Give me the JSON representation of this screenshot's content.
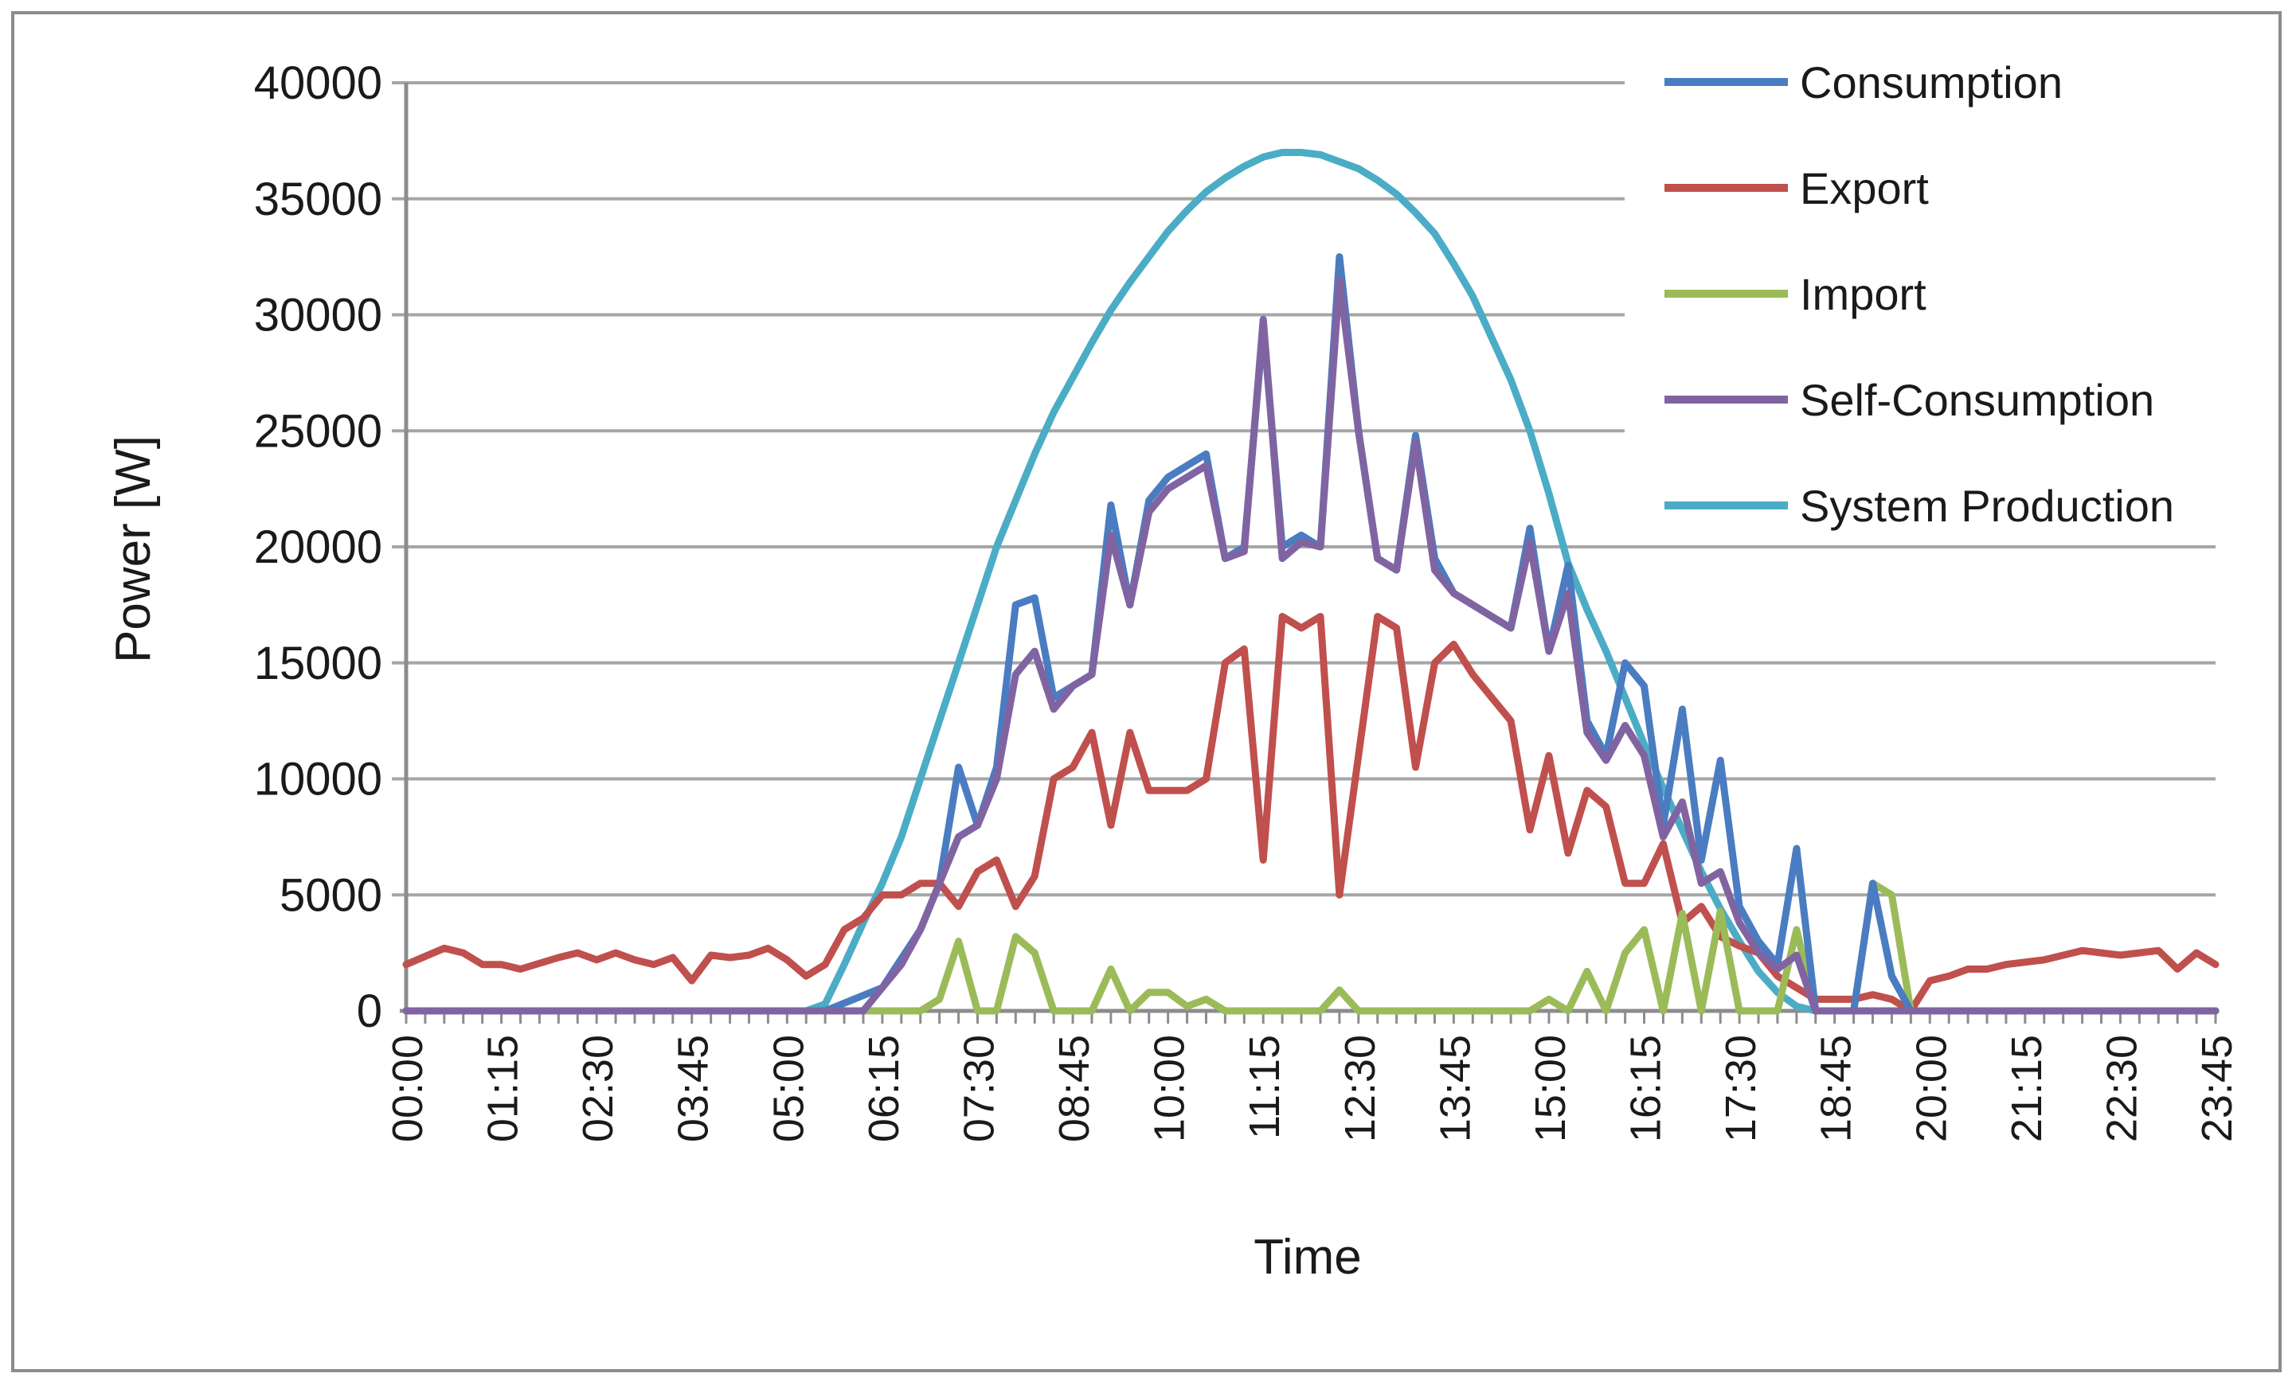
{
  "chart_data": {
    "type": "line",
    "title": "",
    "xlabel": "Time",
    "ylabel": "Power [W]",
    "ylim": [
      0,
      40000
    ],
    "yticks": [
      "0",
      "5000",
      "10000",
      "15000",
      "20000",
      "25000",
      "30000",
      "35000",
      "40000"
    ],
    "xtick_labels": [
      "00:00",
      "01:15",
      "02:30",
      "03:45",
      "05:00",
      "06:15",
      "07:30",
      "08:45",
      "10:00",
      "11:15",
      "12:30",
      "13:45",
      "15:00",
      "16:15",
      "17:30",
      "18:45",
      "20:00",
      "21:15",
      "22:30",
      "23:45"
    ],
    "grid": true,
    "legend_position": "top-right",
    "series": [
      {
        "name": "Consumption",
        "color": "#4a7cc1",
        "points": [
          [
            0,
            0
          ],
          [
            5.5,
            0
          ],
          [
            6.25,
            1000
          ],
          [
            6.75,
            3500
          ],
          [
            7.0,
            5500
          ],
          [
            7.25,
            10500
          ],
          [
            7.5,
            8000
          ],
          [
            7.75,
            10500
          ],
          [
            8.0,
            17500
          ],
          [
            8.25,
            17800
          ],
          [
            8.5,
            13500
          ],
          [
            8.75,
            14000
          ],
          [
            9.0,
            14500
          ],
          [
            9.25,
            21800
          ],
          [
            9.5,
            17500
          ],
          [
            9.75,
            22000
          ],
          [
            10.0,
            23000
          ],
          [
            10.25,
            23500
          ],
          [
            10.5,
            24000
          ],
          [
            10.75,
            19500
          ],
          [
            11.0,
            20000
          ],
          [
            11.25,
            29500
          ],
          [
            11.5,
            20000
          ],
          [
            11.75,
            20500
          ],
          [
            12.0,
            20000
          ],
          [
            12.25,
            32500
          ],
          [
            12.5,
            25000
          ],
          [
            12.75,
            19500
          ],
          [
            13.0,
            19000
          ],
          [
            13.25,
            24800
          ],
          [
            13.5,
            19500
          ],
          [
            13.75,
            18000
          ],
          [
            14.0,
            17500
          ],
          [
            14.25,
            17000
          ],
          [
            14.5,
            16500
          ],
          [
            14.75,
            20800
          ],
          [
            15.0,
            15500
          ],
          [
            15.25,
            19200
          ],
          [
            15.5,
            12500
          ],
          [
            15.75,
            11000
          ],
          [
            16.0,
            15000
          ],
          [
            16.25,
            14000
          ],
          [
            16.5,
            8000
          ],
          [
            16.75,
            13000
          ],
          [
            17.0,
            6500
          ],
          [
            17.25,
            10800
          ],
          [
            17.5,
            4500
          ],
          [
            17.75,
            3000
          ],
          [
            18.0,
            2000
          ],
          [
            18.25,
            7000
          ],
          [
            18.5,
            0
          ],
          [
            19.0,
            0
          ],
          [
            19.25,
            5500
          ],
          [
            19.5,
            1500
          ],
          [
            19.75,
            0
          ],
          [
            23.75,
            0
          ]
        ]
      },
      {
        "name": "Export",
        "color": "#c0504d",
        "points": [
          [
            0,
            2000
          ],
          [
            0.5,
            2700
          ],
          [
            0.75,
            2500
          ],
          [
            1.0,
            2000
          ],
          [
            1.25,
            2000
          ],
          [
            1.5,
            1800
          ],
          [
            2.0,
            2300
          ],
          [
            2.25,
            2500
          ],
          [
            2.5,
            2200
          ],
          [
            2.75,
            2500
          ],
          [
            3.0,
            2200
          ],
          [
            3.25,
            2000
          ],
          [
            3.5,
            2300
          ],
          [
            3.75,
            1300
          ],
          [
            4.0,
            2400
          ],
          [
            4.25,
            2300
          ],
          [
            4.5,
            2400
          ],
          [
            4.75,
            2700
          ],
          [
            5.0,
            2200
          ],
          [
            5.25,
            1500
          ],
          [
            5.5,
            2000
          ],
          [
            5.75,
            3500
          ],
          [
            6.0,
            4000
          ],
          [
            6.25,
            5000
          ],
          [
            6.5,
            5000
          ],
          [
            6.75,
            5500
          ],
          [
            7.0,
            5500
          ],
          [
            7.25,
            4500
          ],
          [
            7.5,
            6000
          ],
          [
            7.75,
            6500
          ],
          [
            8.0,
            4500
          ],
          [
            8.25,
            5800
          ],
          [
            8.5,
            10000
          ],
          [
            8.75,
            10500
          ],
          [
            9.0,
            12000
          ],
          [
            9.25,
            8000
          ],
          [
            9.5,
            12000
          ],
          [
            9.75,
            9500
          ],
          [
            10.0,
            9500
          ],
          [
            10.25,
            9500
          ],
          [
            10.5,
            10000
          ],
          [
            10.75,
            15000
          ],
          [
            11.0,
            15600
          ],
          [
            11.25,
            6500
          ],
          [
            11.5,
            17000
          ],
          [
            11.75,
            16500
          ],
          [
            12.0,
            17000
          ],
          [
            12.25,
            5000
          ],
          [
            12.5,
            11000
          ],
          [
            12.75,
            17000
          ],
          [
            13.0,
            16500
          ],
          [
            13.25,
            10500
          ],
          [
            13.5,
            15000
          ],
          [
            13.75,
            15800
          ],
          [
            14.0,
            14500
          ],
          [
            14.25,
            13500
          ],
          [
            14.5,
            12500
          ],
          [
            14.75,
            7800
          ],
          [
            15.0,
            11000
          ],
          [
            15.25,
            6800
          ],
          [
            15.5,
            9500
          ],
          [
            15.75,
            8800
          ],
          [
            16.0,
            5500
          ],
          [
            16.25,
            5500
          ],
          [
            16.5,
            7200
          ],
          [
            16.75,
            3800
          ],
          [
            17.0,
            4500
          ],
          [
            17.25,
            3200
          ],
          [
            17.5,
            2800
          ],
          [
            17.75,
            2500
          ],
          [
            18.0,
            1500
          ],
          [
            18.5,
            500
          ],
          [
            19.0,
            500
          ],
          [
            19.25,
            700
          ],
          [
            19.5,
            500
          ],
          [
            19.75,
            0
          ],
          [
            20.0,
            1300
          ],
          [
            20.25,
            1500
          ],
          [
            20.5,
            1800
          ],
          [
            20.75,
            1800
          ],
          [
            21.0,
            2000
          ],
          [
            21.5,
            2200
          ],
          [
            22.0,
            2600
          ],
          [
            22.5,
            2400
          ],
          [
            23.0,
            2600
          ],
          [
            23.25,
            1800
          ],
          [
            23.5,
            2500
          ],
          [
            23.75,
            2000
          ]
        ]
      },
      {
        "name": "Import",
        "color": "#9bbb59",
        "points": [
          [
            0,
            0
          ],
          [
            6.75,
            0
          ],
          [
            7.0,
            500
          ],
          [
            7.25,
            3000
          ],
          [
            7.5,
            0
          ],
          [
            7.75,
            0
          ],
          [
            8.0,
            3200
          ],
          [
            8.25,
            2500
          ],
          [
            8.5,
            0
          ],
          [
            9.0,
            0
          ],
          [
            9.25,
            1800
          ],
          [
            9.5,
            0
          ],
          [
            9.75,
            800
          ],
          [
            10.0,
            800
          ],
          [
            10.25,
            200
          ],
          [
            10.5,
            500
          ],
          [
            10.75,
            0
          ],
          [
            12.0,
            0
          ],
          [
            12.25,
            900
          ],
          [
            12.5,
            0
          ],
          [
            14.75,
            0
          ],
          [
            15.0,
            500
          ],
          [
            15.25,
            0
          ],
          [
            15.5,
            1700
          ],
          [
            15.75,
            0
          ],
          [
            16.0,
            2500
          ],
          [
            16.25,
            3500
          ],
          [
            16.5,
            0
          ],
          [
            16.75,
            4200
          ],
          [
            17.0,
            0
          ],
          [
            17.25,
            4300
          ],
          [
            17.5,
            0
          ],
          [
            18.0,
            0
          ],
          [
            18.25,
            3500
          ],
          [
            18.5,
            0
          ],
          [
            19.0,
            0
          ],
          [
            19.25,
            5500
          ],
          [
            19.5,
            5000
          ],
          [
            19.75,
            0
          ],
          [
            23.75,
            0
          ]
        ]
      },
      {
        "name": "Self-Consumption",
        "color": "#8064a2",
        "points": [
          [
            0,
            0
          ],
          [
            5.75,
            0
          ],
          [
            6.0,
            0
          ],
          [
            6.25,
            1000
          ],
          [
            6.5,
            2000
          ],
          [
            6.75,
            3500
          ],
          [
            7.0,
            5500
          ],
          [
            7.25,
            7500
          ],
          [
            7.5,
            8000
          ],
          [
            7.75,
            10000
          ],
          [
            8.0,
            14500
          ],
          [
            8.25,
            15500
          ],
          [
            8.5,
            13000
          ],
          [
            8.75,
            14000
          ],
          [
            9.0,
            14500
          ],
          [
            9.25,
            20500
          ],
          [
            9.5,
            17500
          ],
          [
            9.75,
            21500
          ],
          [
            10.0,
            22500
          ],
          [
            10.25,
            23000
          ],
          [
            10.5,
            23500
          ],
          [
            10.75,
            19500
          ],
          [
            11.0,
            19800
          ],
          [
            11.25,
            29800
          ],
          [
            11.5,
            19500
          ],
          [
            11.75,
            20200
          ],
          [
            12.0,
            20000
          ],
          [
            12.25,
            31500
          ],
          [
            12.5,
            25000
          ],
          [
            12.75,
            19500
          ],
          [
            13.0,
            19000
          ],
          [
            13.25,
            24500
          ],
          [
            13.5,
            19000
          ],
          [
            13.75,
            18000
          ],
          [
            14.0,
            17500
          ],
          [
            14.25,
            17000
          ],
          [
            14.5,
            16500
          ],
          [
            14.75,
            20200
          ],
          [
            15.0,
            15500
          ],
          [
            15.25,
            18000
          ],
          [
            15.5,
            12000
          ],
          [
            15.75,
            10800
          ],
          [
            16.0,
            12300
          ],
          [
            16.25,
            11000
          ],
          [
            16.5,
            7500
          ],
          [
            16.75,
            9000
          ],
          [
            17.0,
            5500
          ],
          [
            17.25,
            6000
          ],
          [
            17.5,
            3800
          ],
          [
            17.75,
            2500
          ],
          [
            18.0,
            1800
          ],
          [
            18.25,
            2400
          ],
          [
            18.5,
            0
          ],
          [
            23.75,
            0
          ]
        ]
      },
      {
        "name": "System Production",
        "color": "#4bacc6",
        "points": [
          [
            0,
            0
          ],
          [
            5.25,
            0
          ],
          [
            5.5,
            300
          ],
          [
            5.75,
            2000
          ],
          [
            6.0,
            3800
          ],
          [
            6.25,
            5500
          ],
          [
            6.5,
            7500
          ],
          [
            6.75,
            10000
          ],
          [
            7.0,
            12500
          ],
          [
            7.25,
            15000
          ],
          [
            7.5,
            17500
          ],
          [
            7.75,
            20000
          ],
          [
            8.0,
            22000
          ],
          [
            8.25,
            24000
          ],
          [
            8.5,
            25800
          ],
          [
            8.75,
            27300
          ],
          [
            9.0,
            28800
          ],
          [
            9.25,
            30200
          ],
          [
            9.5,
            31400
          ],
          [
            9.75,
            32500
          ],
          [
            10.0,
            33600
          ],
          [
            10.25,
            34500
          ],
          [
            10.5,
            35300
          ],
          [
            10.75,
            35900
          ],
          [
            11.0,
            36400
          ],
          [
            11.25,
            36800
          ],
          [
            11.5,
            37000
          ],
          [
            11.75,
            37000
          ],
          [
            12.0,
            36900
          ],
          [
            12.25,
            36600
          ],
          [
            12.5,
            36300
          ],
          [
            12.75,
            35800
          ],
          [
            13.0,
            35200
          ],
          [
            13.25,
            34400
          ],
          [
            13.5,
            33500
          ],
          [
            13.75,
            32200
          ],
          [
            14.0,
            30800
          ],
          [
            14.25,
            29000
          ],
          [
            14.5,
            27200
          ],
          [
            14.75,
            25000
          ],
          [
            15.0,
            22300
          ],
          [
            15.25,
            19300
          ],
          [
            15.5,
            17300
          ],
          [
            15.75,
            15500
          ],
          [
            16.0,
            13500
          ],
          [
            16.25,
            11500
          ],
          [
            16.5,
            9600
          ],
          [
            16.75,
            7800
          ],
          [
            17.0,
            6000
          ],
          [
            17.25,
            4400
          ],
          [
            17.5,
            3000
          ],
          [
            17.75,
            1700
          ],
          [
            18.0,
            800
          ],
          [
            18.25,
            200
          ],
          [
            18.5,
            0
          ],
          [
            23.75,
            0
          ]
        ]
      }
    ]
  }
}
